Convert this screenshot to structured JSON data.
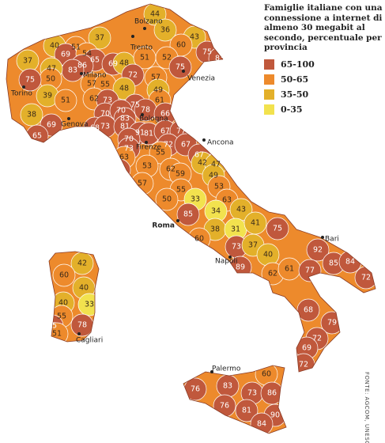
{
  "map": {
    "title": "Famiglie italiane con una connessione a internet di almeno 30 megabit al secondo, percentuale per provincia",
    "legend": [
      {
        "label": "65-100",
        "from": 65,
        "to": 100,
        "color": "#c0583c"
      },
      {
        "label": "50-65",
        "from": 50,
        "to": 65,
        "color": "#ed8a2c"
      },
      {
        "label": "35-50",
        "from": 35,
        "to": 50,
        "color": "#e3b02a"
      },
      {
        "label": "0-35",
        "from": 0,
        "to": 35,
        "color": "#f2e24e"
      }
    ],
    "provinces": [
      44,
      36,
      43,
      60,
      75,
      83,
      37,
      40,
      51,
      69,
      54,
      65,
      37,
      86,
      83,
      47,
      69,
      48,
      51,
      52,
      72,
      57,
      75,
      50,
      75,
      57,
      55,
      48,
      49,
      61,
      39,
      51,
      62,
      73,
      75,
      78,
      38,
      69,
      70,
      70,
      83,
      66,
      65,
      68,
      73,
      81,
      91,
      81,
      67,
      77,
      70,
      73,
      72,
      67,
      63,
      55,
      67,
      82,
      53,
      62,
      59,
      42,
      47,
      49,
      57,
      53,
      55,
      50,
      33,
      63,
      34,
      43,
      85,
      38,
      31,
      41,
      75,
      60,
      73,
      37,
      40,
      89,
      92,
      85,
      84,
      72,
      62,
      61,
      77,
      68,
      79,
      72,
      69,
      72,
      42,
      60,
      40,
      40,
      33,
      55,
      65,
      78,
      51,
      60,
      76,
      83,
      73,
      86,
      76,
      81,
      90,
      84
    ],
    "cities": [
      "Bolzano",
      "Trento",
      "Venezia",
      "Milano",
      "Torino",
      "Genova",
      "Bologna",
      "Firenze",
      "Ancona",
      "Roma",
      "Napoli",
      "Bari",
      "Cagliari",
      "Palermo"
    ],
    "source": "FONTE: AGCOM, UNESCO"
  }
}
